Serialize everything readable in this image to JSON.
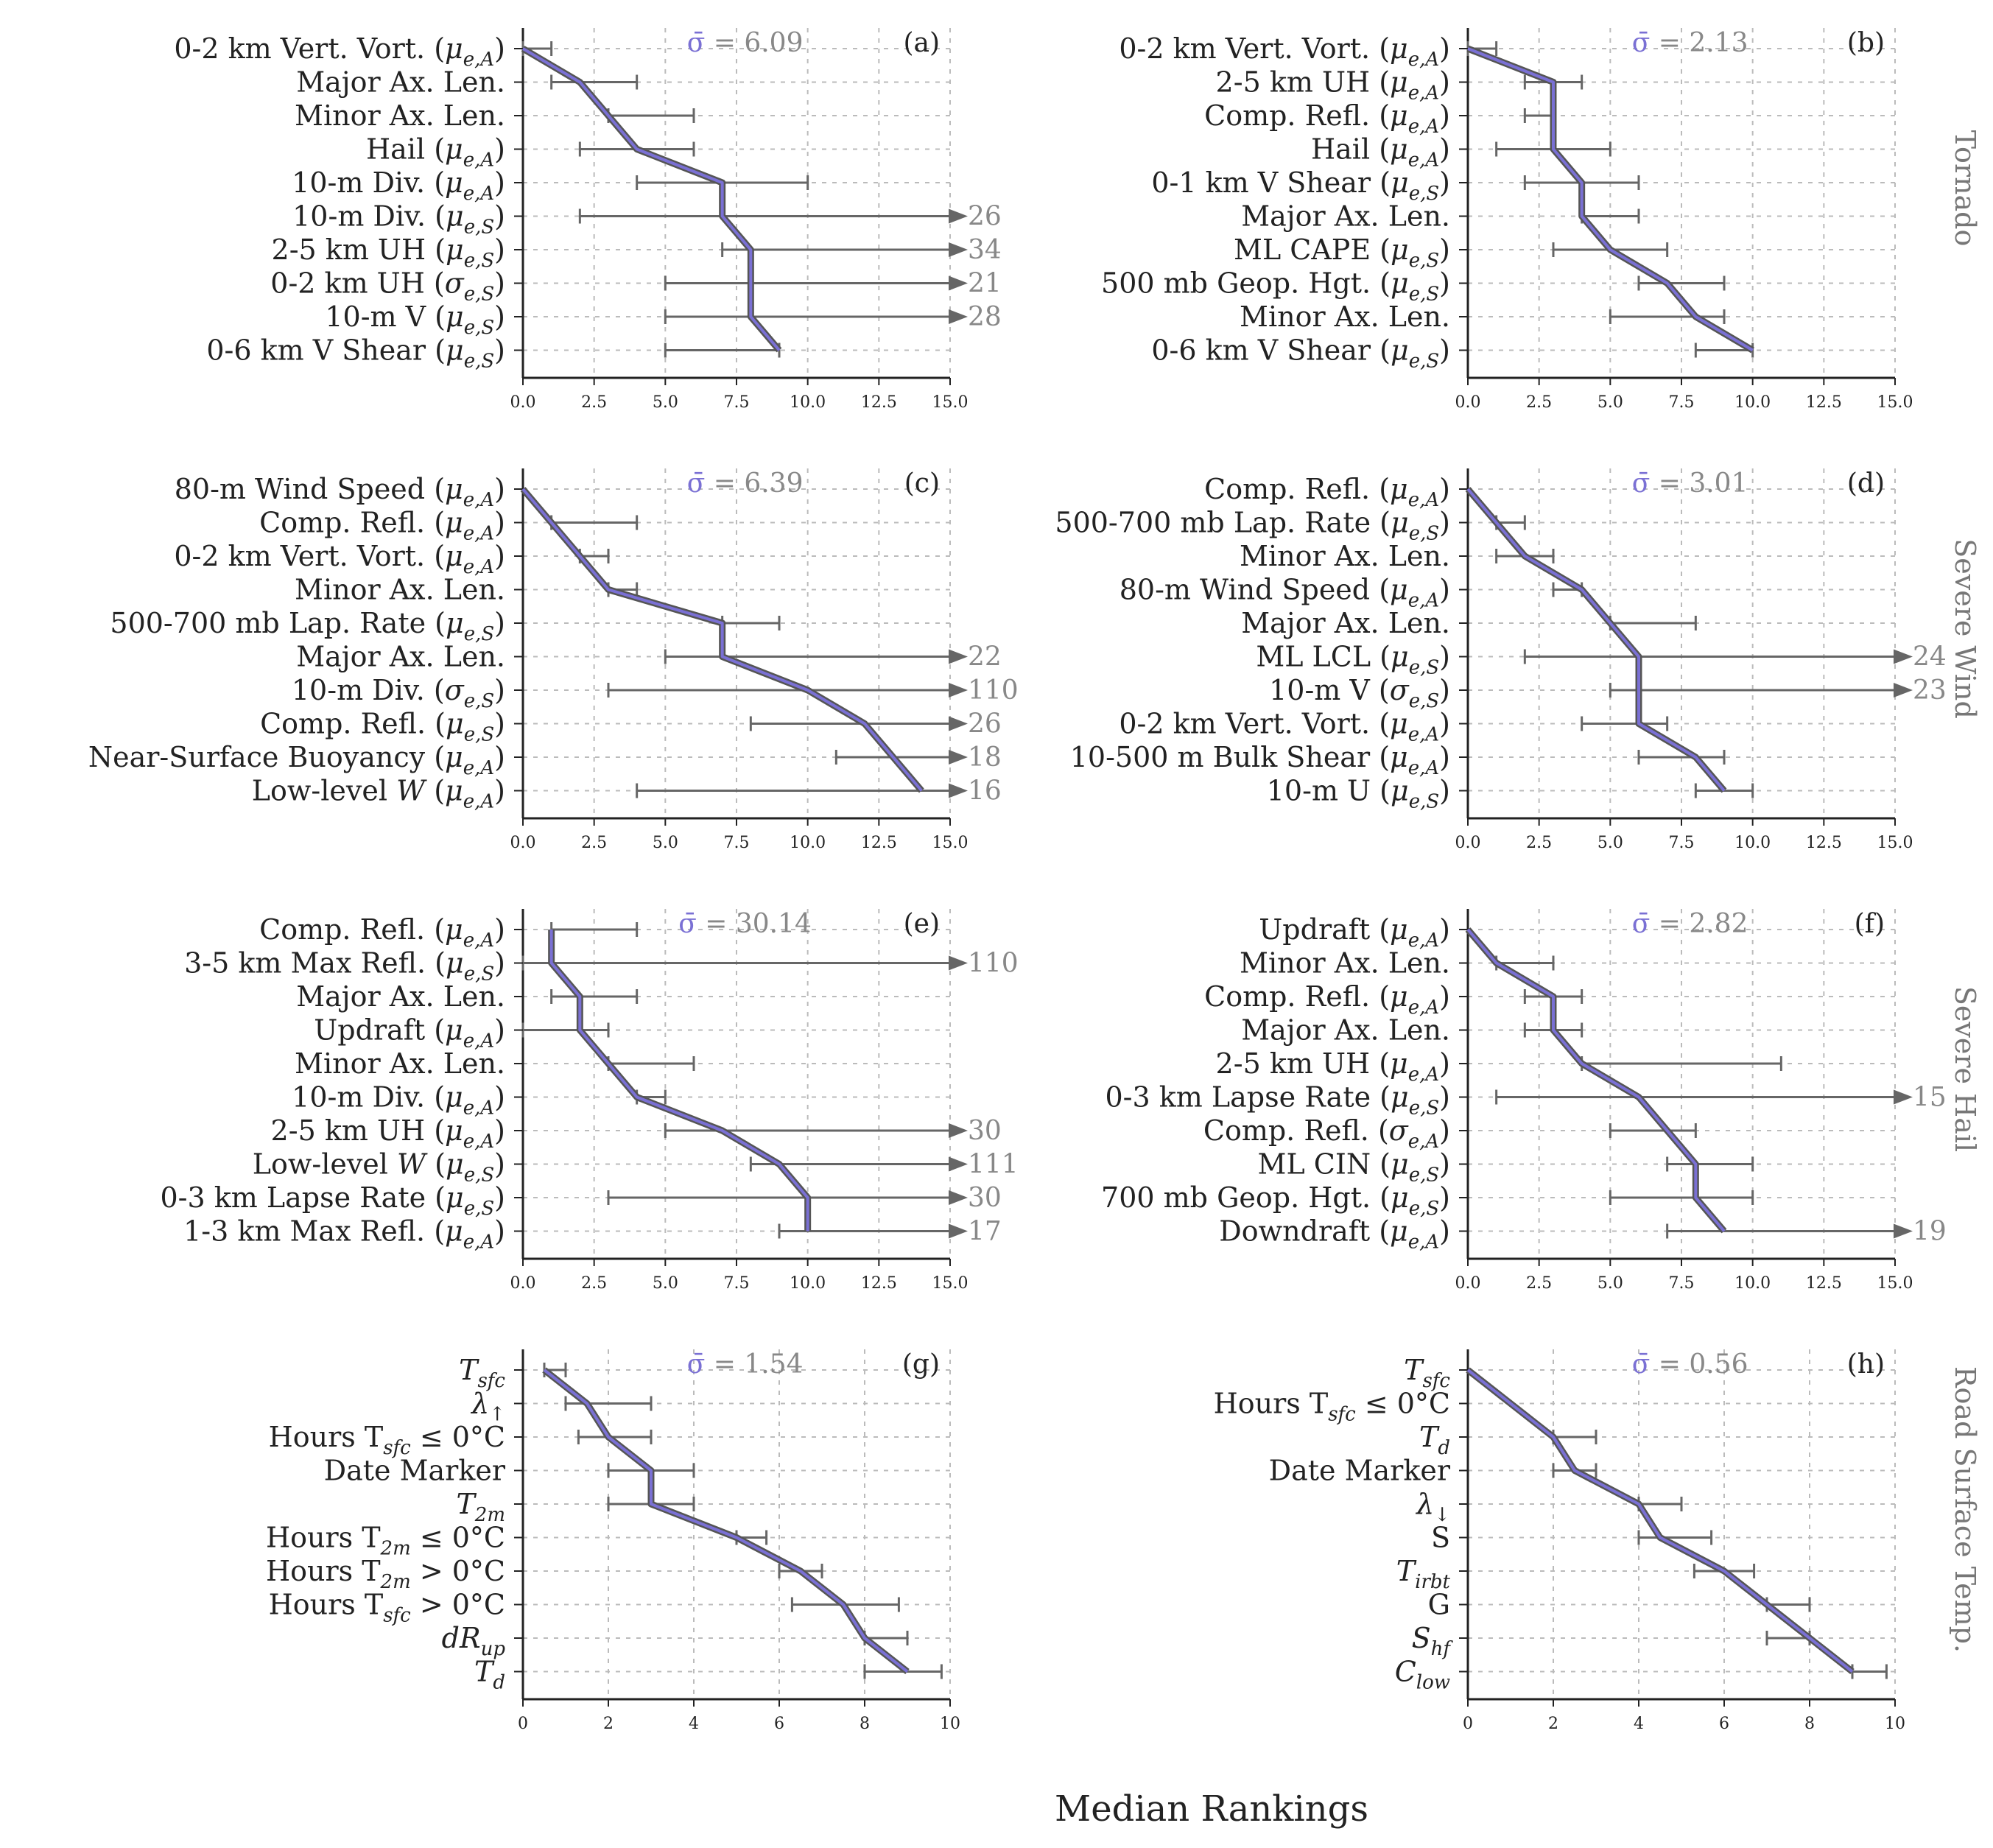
{
  "figure": {
    "xlabel": "Median Rankings",
    "row_labels": [
      "Tornado",
      "Severe Wind",
      "Severe Hail",
      "Road Surface Temp."
    ]
  },
  "chart_data": [
    {
      "type": "line",
      "panel": "(a)",
      "sigma_label": "σ̄ = 6.09",
      "xlim": [
        0,
        15
      ],
      "xticks": [
        "0.0",
        "2.5",
        "5.0",
        "7.5",
        "10.0",
        "12.5",
        "15.0"
      ],
      "rows": [
        {
          "name": "0-2 km Vert. Vort.",
          "stat": "μe,A",
          "median": 0,
          "lo": 0,
          "hi": 1
        },
        {
          "name": "Major Ax. Len.",
          "stat": "",
          "median": 2,
          "lo": 1,
          "hi": 4
        },
        {
          "name": "Minor Ax. Len.",
          "stat": "",
          "median": 3,
          "lo": 3,
          "hi": 6
        },
        {
          "name": "Hail",
          "stat": "μe,A",
          "median": 4,
          "lo": 2,
          "hi": 6
        },
        {
          "name": "10-m Div.",
          "stat": "μe,A",
          "median": 7,
          "lo": 4,
          "hi": 10
        },
        {
          "name": "10-m Div.",
          "stat": "μe,S",
          "median": 7,
          "lo": 2,
          "hi": 26,
          "overflow": "26"
        },
        {
          "name": "2-5 km UH",
          "stat": "μe,S",
          "median": 8,
          "lo": 7,
          "hi": 34,
          "overflow": "34"
        },
        {
          "name": "0-2 km UH",
          "stat": "σe,S",
          "median": 8,
          "lo": 5,
          "hi": 21,
          "overflow": "21"
        },
        {
          "name": "10-m V",
          "stat": "μe,S",
          "median": 8,
          "lo": 5,
          "hi": 28,
          "overflow": "28"
        },
        {
          "name": "0-6 km V Shear",
          "stat": "μe,S",
          "median": 9,
          "lo": 5,
          "hi": 9
        }
      ]
    },
    {
      "type": "line",
      "panel": "(b)",
      "sigma_label": "σ̄ = 2.13",
      "xlim": [
        0,
        15
      ],
      "xticks": [
        "0.0",
        "2.5",
        "5.0",
        "7.5",
        "10.0",
        "12.5",
        "15.0"
      ],
      "rows": [
        {
          "name": "0-2 km Vert. Vort.",
          "stat": "μe,A",
          "median": 0,
          "lo": 0,
          "hi": 1
        },
        {
          "name": "2-5 km UH",
          "stat": "μe,A",
          "median": 3,
          "lo": 2,
          "hi": 4
        },
        {
          "name": "Comp. Refl.",
          "stat": "μe,A",
          "median": 3,
          "lo": 2,
          "hi": 3
        },
        {
          "name": "Hail",
          "stat": "μe,A",
          "median": 3,
          "lo": 1,
          "hi": 5
        },
        {
          "name": "0-1 km V Shear",
          "stat": "μe,S",
          "median": 4,
          "lo": 2,
          "hi": 6
        },
        {
          "name": "Major Ax. Len.",
          "stat": "",
          "median": 4,
          "lo": 4,
          "hi": 6
        },
        {
          "name": "ML CAPE",
          "stat": "μe,S",
          "median": 5,
          "lo": 3,
          "hi": 7
        },
        {
          "name": "500 mb Geop. Hgt.",
          "stat": "μe,S",
          "median": 7,
          "lo": 6,
          "hi": 9
        },
        {
          "name": "Minor Ax. Len.",
          "stat": "",
          "median": 8,
          "lo": 5,
          "hi": 9
        },
        {
          "name": "0-6 km V Shear",
          "stat": "μe,S",
          "median": 10,
          "lo": 8,
          "hi": 10
        }
      ]
    },
    {
      "type": "line",
      "panel": "(c)",
      "sigma_label": "σ̄ = 6.39",
      "xlim": [
        0,
        15
      ],
      "xticks": [
        "0.0",
        "2.5",
        "5.0",
        "7.5",
        "10.0",
        "12.5",
        "15.0"
      ],
      "rows": [
        {
          "name": "80-m Wind Speed",
          "stat": "μe,A",
          "median": 0,
          "lo": 0,
          "hi": 0
        },
        {
          "name": "Comp. Refl.",
          "stat": "μe,A",
          "median": 1,
          "lo": 1,
          "hi": 4
        },
        {
          "name": "0-2 km Vert. Vort.",
          "stat": "μe,A",
          "median": 2,
          "lo": 2,
          "hi": 3
        },
        {
          "name": "Minor Ax. Len.",
          "stat": "",
          "median": 3,
          "lo": 3,
          "hi": 4
        },
        {
          "name": "500-700 mb Lap. Rate",
          "stat": "μe,S",
          "median": 7,
          "lo": 7,
          "hi": 9
        },
        {
          "name": "Major Ax. Len.",
          "stat": "",
          "median": 7,
          "lo": 5,
          "hi": 22,
          "overflow": "22"
        },
        {
          "name": "10-m Div.",
          "stat": "σe,S",
          "median": 10,
          "lo": 3,
          "hi": 110,
          "overflow": "110"
        },
        {
          "name": "Comp. Refl.",
          "stat": "μe,S",
          "median": 12,
          "lo": 8,
          "hi": 26,
          "overflow": "26"
        },
        {
          "name": "Near-Surface Buoyancy",
          "stat": "μe,A",
          "median": 13,
          "lo": 11,
          "hi": 18,
          "overflow": "18"
        },
        {
          "name": "Low-level W",
          "stat": "μe,A",
          "median": 14,
          "lo": 4,
          "hi": 16,
          "overflow": "16"
        }
      ]
    },
    {
      "type": "line",
      "panel": "(d)",
      "sigma_label": "σ̄ = 3.01",
      "xlim": [
        0,
        15
      ],
      "xticks": [
        "0.0",
        "2.5",
        "5.0",
        "7.5",
        "10.0",
        "12.5",
        "15.0"
      ],
      "rows": [
        {
          "name": "Comp. Refl.",
          "stat": "μe,A",
          "median": 0,
          "lo": 0,
          "hi": 0
        },
        {
          "name": "500-700 mb Lap. Rate",
          "stat": "μe,S",
          "median": 1,
          "lo": 1,
          "hi": 2
        },
        {
          "name": "Minor Ax. Len.",
          "stat": "",
          "median": 2,
          "lo": 1,
          "hi": 3
        },
        {
          "name": "80-m Wind Speed",
          "stat": "μe,A",
          "median": 4,
          "lo": 3,
          "hi": 4
        },
        {
          "name": "Major Ax. Len.",
          "stat": "",
          "median": 5,
          "lo": 5,
          "hi": 8
        },
        {
          "name": "ML LCL",
          "stat": "μe,S",
          "median": 6,
          "lo": 2,
          "hi": 24,
          "overflow": "24"
        },
        {
          "name": "10-m V",
          "stat": "σe,S",
          "median": 6,
          "lo": 5,
          "hi": 23,
          "overflow": "23"
        },
        {
          "name": "0-2 km Vert. Vort.",
          "stat": "μe,A",
          "median": 6,
          "lo": 4,
          "hi": 7
        },
        {
          "name": "10-500 m Bulk Shear",
          "stat": "μe,A",
          "median": 8,
          "lo": 6,
          "hi": 9
        },
        {
          "name": "10-m U",
          "stat": "μe,S",
          "median": 9,
          "lo": 8,
          "hi": 10
        }
      ]
    },
    {
      "type": "line",
      "panel": "(e)",
      "sigma_label": "σ̄ = 30.14",
      "xlim": [
        0,
        15
      ],
      "xticks": [
        "0.0",
        "2.5",
        "5.0",
        "7.5",
        "10.0",
        "12.5",
        "15.0"
      ],
      "rows": [
        {
          "name": "Comp. Refl.",
          "stat": "μe,A",
          "median": 1,
          "lo": 1,
          "hi": 4
        },
        {
          "name": "3-5 km Max Refl.",
          "stat": "μe,S",
          "median": 1,
          "lo": 0,
          "hi": 110,
          "overflow": "110"
        },
        {
          "name": "Major Ax. Len.",
          "stat": "",
          "median": 2,
          "lo": 1,
          "hi": 4
        },
        {
          "name": "Updraft",
          "stat": "μe,A",
          "median": 2,
          "lo": 0,
          "hi": 3
        },
        {
          "name": "Minor Ax. Len.",
          "stat": "",
          "median": 3,
          "lo": 3,
          "hi": 6
        },
        {
          "name": "10-m Div.",
          "stat": "μe,A",
          "median": 4,
          "lo": 4,
          "hi": 5
        },
        {
          "name": "2-5 km UH",
          "stat": "μe,A",
          "median": 7,
          "lo": 5,
          "hi": 30,
          "overflow": "30"
        },
        {
          "name": "Low-level W",
          "stat": "μe,S",
          "median": 9,
          "lo": 8,
          "hi": 111,
          "overflow": "111"
        },
        {
          "name": "0-3 km Lapse Rate",
          "stat": "μe,S",
          "median": 10,
          "lo": 3,
          "hi": 30,
          "overflow": "30"
        },
        {
          "name": "1-3 km Max Refl.",
          "stat": "μe,A",
          "median": 10,
          "lo": 9,
          "hi": 17,
          "overflow": "17"
        }
      ]
    },
    {
      "type": "line",
      "panel": "(f)",
      "sigma_label": "σ̄ = 2.82",
      "xlim": [
        0,
        15
      ],
      "xticks": [
        "0.0",
        "2.5",
        "5.0",
        "7.5",
        "10.0",
        "12.5",
        "15.0"
      ],
      "rows": [
        {
          "name": "Updraft",
          "stat": "μe,A",
          "median": 0,
          "lo": 0,
          "hi": 0
        },
        {
          "name": "Minor Ax. Len.",
          "stat": "",
          "median": 1,
          "lo": 1,
          "hi": 3
        },
        {
          "name": "Comp. Refl.",
          "stat": "μe,A",
          "median": 3,
          "lo": 2,
          "hi": 4
        },
        {
          "name": "Major Ax. Len.",
          "stat": "",
          "median": 3,
          "lo": 2,
          "hi": 4
        },
        {
          "name": "2-5 km UH",
          "stat": "μe,A",
          "median": 4,
          "lo": 4,
          "hi": 11
        },
        {
          "name": "0-3 km Lapse Rate",
          "stat": "μe,S",
          "median": 6,
          "lo": 1,
          "hi": 15,
          "overflow": "15"
        },
        {
          "name": "Comp. Refl.",
          "stat": "σe,A",
          "median": 7,
          "lo": 5,
          "hi": 8
        },
        {
          "name": "ML CIN",
          "stat": "μe,S",
          "median": 8,
          "lo": 7,
          "hi": 10
        },
        {
          "name": "700 mb Geop. Hgt.",
          "stat": "μe,S",
          "median": 8,
          "lo": 5,
          "hi": 10
        },
        {
          "name": "Downdraft",
          "stat": "μe,A",
          "median": 9,
          "lo": 7,
          "hi": 19,
          "overflow": "19"
        }
      ]
    },
    {
      "type": "line",
      "panel": "(g)",
      "sigma_label": "σ̄ = 1.54",
      "xlim": [
        0,
        10
      ],
      "xticks": [
        "0",
        "2",
        "4",
        "6",
        "8",
        "10"
      ],
      "rows": [
        {
          "name": "T",
          "sub": "sfc",
          "math": true,
          "median": 0.5,
          "lo": 0.5,
          "hi": 1
        },
        {
          "name": "λ",
          "sub": "↑",
          "math": true,
          "median": 1.5,
          "lo": 1,
          "hi": 3
        },
        {
          "name": "Hours T",
          "sub": "sfc",
          "post": " ≤ 0°C",
          "median": 2,
          "lo": 1.3,
          "hi": 3
        },
        {
          "name": "Date Marker",
          "median": 3,
          "lo": 2,
          "hi": 4
        },
        {
          "name": "T",
          "sub": "2m",
          "math": true,
          "median": 3,
          "lo": 2,
          "hi": 4
        },
        {
          "name": "Hours T",
          "sub": "2m",
          "post": " ≤ 0°C",
          "median": 5,
          "lo": 5,
          "hi": 5.7
        },
        {
          "name": "Hours T",
          "sub": "2m",
          "post": " > 0°C",
          "median": 6.5,
          "lo": 6,
          "hi": 7
        },
        {
          "name": "Hours T",
          "sub": "sfc",
          "post": " > 0°C",
          "median": 7.5,
          "lo": 6.3,
          "hi": 8.8
        },
        {
          "name": "dR",
          "sub": "up",
          "math": true,
          "median": 8,
          "lo": 8,
          "hi": 9
        },
        {
          "name": "T",
          "sub": "d",
          "math": true,
          "median": 9,
          "lo": 8,
          "hi": 9.8
        }
      ]
    },
    {
      "type": "line",
      "panel": "(h)",
      "sigma_label": "σ̄ = 0.56",
      "xlim": [
        0,
        10
      ],
      "xticks": [
        "0",
        "2",
        "4",
        "6",
        "8",
        "10"
      ],
      "rows": [
        {
          "name": "T",
          "sub": "sfc",
          "math": true,
          "median": 0,
          "lo": 0,
          "hi": 0
        },
        {
          "name": "Hours T",
          "sub": "sfc",
          "post": " ≤ 0°C",
          "median": 1,
          "lo": 1,
          "hi": 1
        },
        {
          "name": "T",
          "sub": "d",
          "math": true,
          "median": 2,
          "lo": 2,
          "hi": 3
        },
        {
          "name": "Date Marker",
          "median": 2.5,
          "lo": 2,
          "hi": 3
        },
        {
          "name": "λ",
          "sub": "↓",
          "math": true,
          "median": 4,
          "lo": 4,
          "hi": 5
        },
        {
          "name": "S",
          "median": 4.5,
          "lo": 4,
          "hi": 5.7
        },
        {
          "name": "T",
          "sub": "irbt",
          "math": true,
          "median": 6,
          "lo": 5.3,
          "hi": 6.7
        },
        {
          "name": "G",
          "median": 7,
          "lo": 7,
          "hi": 8
        },
        {
          "name": "S",
          "sub": "hf",
          "math": true,
          "median": 8,
          "lo": 7,
          "hi": 8
        },
        {
          "name": "C",
          "sub": "low",
          "math": true,
          "median": 9,
          "lo": 9,
          "hi": 9.8
        }
      ]
    }
  ],
  "style": {
    "median_line_dark": "#555555",
    "median_line_accent": "#7a70d4",
    "errorbar": "#666666",
    "grid": "#bbbbbb",
    "axis": "#222222",
    "text": "#222222",
    "sigma_symbol": "#7a70d4",
    "muted_text": "#888888"
  }
}
